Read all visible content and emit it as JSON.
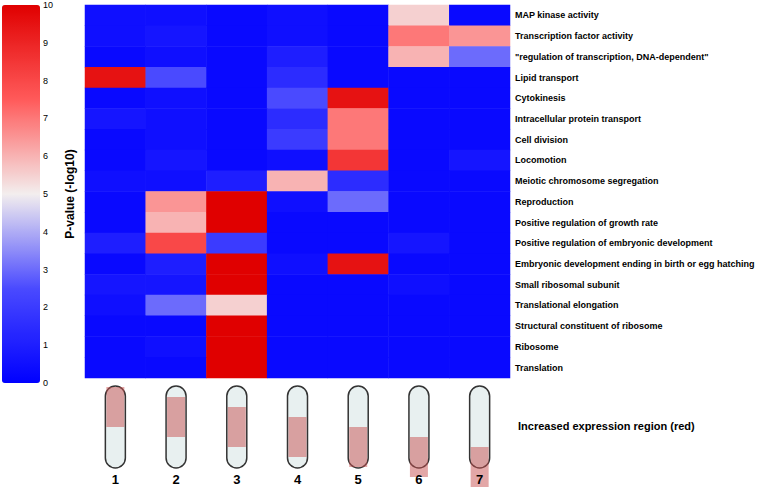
{
  "chart_data": {
    "type": "heatmap",
    "x": [
      "1",
      "2",
      "3",
      "4",
      "5",
      "6",
      "7"
    ],
    "y": [
      "MAP kinase activity",
      "Transcription factor activity",
      "\"regulation of transcription, DNA-dependent\"",
      "Lipid transport",
      "Cytokinesis",
      "Intracellular protein transport",
      "Cell division",
      "Locomotion",
      "Meiotic chromosome segregation",
      "Reproduction",
      "Positive regulation of growth rate",
      "Positive regulation of embryonic development",
      "Embryonic development ending in birth or egg hatching",
      "Small ribosomal subunit",
      "Translational elongation",
      "Structural constituent of ribosome",
      "Ribosome",
      "Translation"
    ],
    "values": [
      [
        0.5,
        0.5,
        0.3,
        0.5,
        0.3,
        5.5,
        0.3
      ],
      [
        0.5,
        0.7,
        0.3,
        0.5,
        0.3,
        7.0,
        6.5
      ],
      [
        0.3,
        0.5,
        0.3,
        1.0,
        0.3,
        6.0,
        3.0
      ],
      [
        9.5,
        2.5,
        0.3,
        1.5,
        0.3,
        0.3,
        0.3
      ],
      [
        0.3,
        0.5,
        0.3,
        2.5,
        9.5,
        0.3,
        0.3
      ],
      [
        0.7,
        0.5,
        0.3,
        1.5,
        7.0,
        0.3,
        0.3
      ],
      [
        0.3,
        0.5,
        0.3,
        2.0,
        7.0,
        0.3,
        0.3
      ],
      [
        0.3,
        0.7,
        0.3,
        0.5,
        8.5,
        0.3,
        0.7
      ],
      [
        0.5,
        0.5,
        1.0,
        6.0,
        1.5,
        0.3,
        0.3
      ],
      [
        0.3,
        6.5,
        10,
        0.5,
        3.0,
        0.3,
        0.3
      ],
      [
        0.3,
        6.0,
        10,
        0.3,
        0.3,
        0.3,
        0.3
      ],
      [
        1.0,
        8.0,
        2.0,
        0.3,
        0.3,
        0.7,
        0.3
      ],
      [
        0.3,
        1.0,
        10,
        0.5,
        9.5,
        0.3,
        0.3
      ],
      [
        0.7,
        0.7,
        10,
        0.3,
        0.3,
        0.5,
        0.3
      ],
      [
        0.5,
        3.0,
        5.5,
        0.3,
        0.3,
        0.3,
        0.3
      ],
      [
        0.3,
        0.3,
        10,
        0.3,
        0.3,
        0.3,
        0.3
      ],
      [
        0.3,
        0.5,
        10,
        0.3,
        0.3,
        0.3,
        0.3
      ],
      [
        0.3,
        0.3,
        10,
        0.3,
        0.3,
        0.3,
        0.3
      ]
    ],
    "colorbar": {
      "label": "P-value (-log10)",
      "range": [
        0,
        10
      ],
      "ticks": [
        0,
        1,
        2,
        3,
        4,
        5,
        6,
        7,
        8,
        9,
        10
      ]
    },
    "annotation": "Increased expression region (red)"
  }
}
